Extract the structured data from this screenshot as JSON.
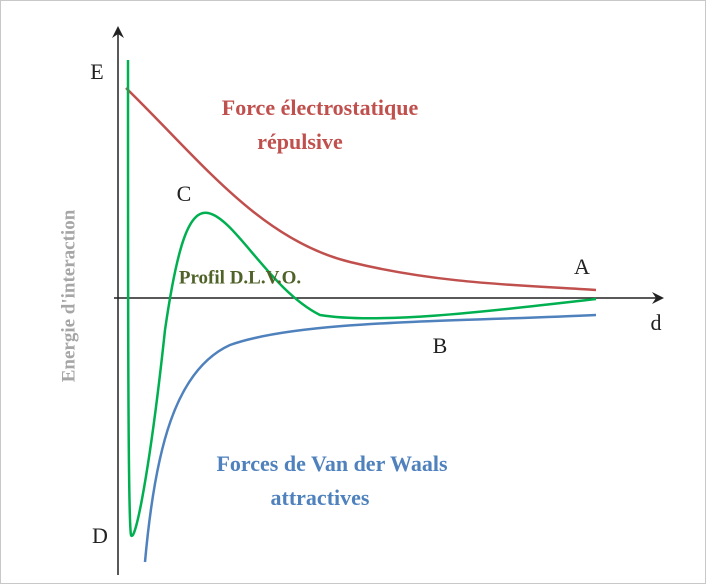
{
  "axes": {
    "y_label": "E",
    "x_label": "d",
    "y_title": "Energie d'interaction"
  },
  "curves": {
    "repulsive": {
      "label": [
        "Force électrostatique",
        "répulsive"
      ]
    },
    "dlvo": {
      "label": "Profil D.L.V.O."
    },
    "attractive": {
      "label": [
        "Forces de Van der Waals",
        "attractives"
      ]
    }
  },
  "points": {
    "A": "A",
    "B": "B",
    "C": "C",
    "D": "D"
  }
}
